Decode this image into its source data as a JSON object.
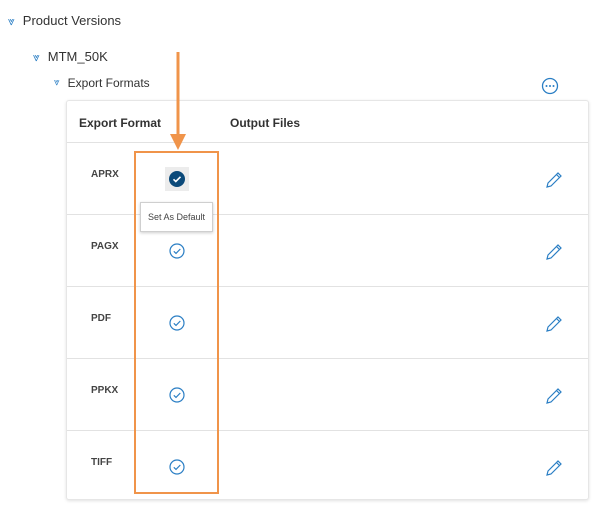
{
  "tree": {
    "level1": "Product Versions",
    "level2": "MTM_50K",
    "level3": "Export Formats"
  },
  "table": {
    "columns": [
      "Export Format",
      "Output Files"
    ],
    "rows": [
      {
        "format": "APRX",
        "is_default": true
      },
      {
        "format": "PAGX",
        "is_default": false
      },
      {
        "format": "PDF",
        "is_default": false
      },
      {
        "format": "PPKX",
        "is_default": false
      },
      {
        "format": "TIFF",
        "is_default": false
      }
    ]
  },
  "tooltip": "Set As Default",
  "colors": {
    "accent": "#2a7ec4",
    "default_fill": "#0c4a7a",
    "highlight": "#f0944a"
  },
  "icons": {
    "expand": "chevron-double-down-icon",
    "more": "ellipsis-circle-icon",
    "default": "check-circle-icon",
    "edit": "pencil-icon"
  }
}
